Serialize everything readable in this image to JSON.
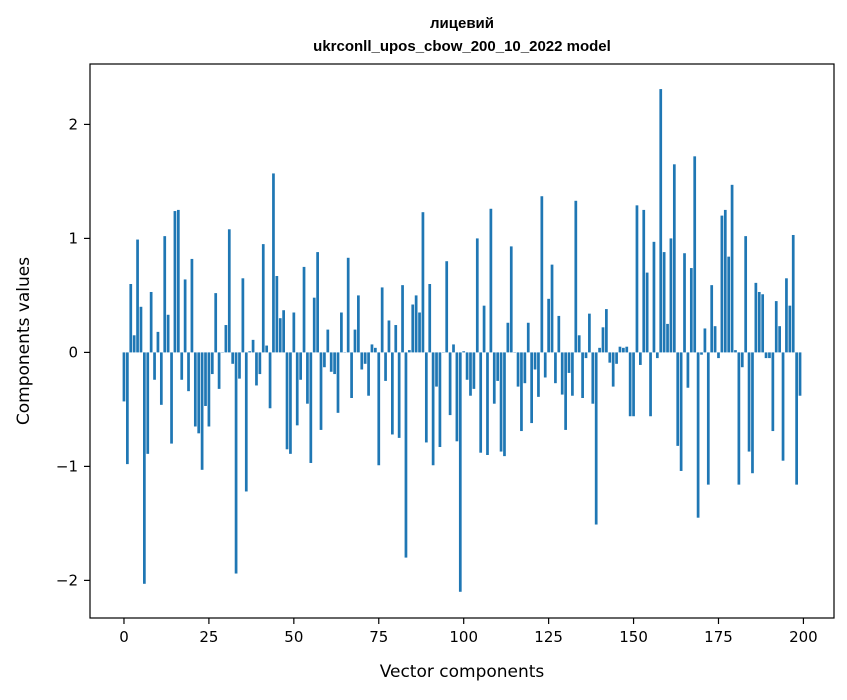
{
  "chart_data": {
    "type": "bar",
    "title_line1": "лицевий",
    "title_line2": "ukrconll_upos_cbow_200_10_2022 model",
    "xlabel": "Vector components",
    "ylabel": "Components values",
    "xlim": [
      -10,
      209
    ],
    "ylim": [
      -2.33,
      2.53
    ],
    "x_ticks": [
      0,
      25,
      50,
      75,
      100,
      125,
      150,
      175,
      200
    ],
    "x_tick_labels": [
      "0",
      "25",
      "50",
      "75",
      "100",
      "125",
      "150",
      "175",
      "200"
    ],
    "y_ticks": [
      -2,
      -1,
      0,
      1,
      2
    ],
    "y_tick_labels": [
      "−2",
      "−1",
      "0",
      "1",
      "2"
    ],
    "bar_color": "#1f77b4",
    "grid": false,
    "legend": "none",
    "values": [
      -0.43,
      -0.98,
      0.6,
      0.15,
      0.99,
      0.4,
      -2.03,
      -0.89,
      0.53,
      -0.24,
      0.18,
      -0.46,
      1.02,
      0.33,
      -0.8,
      1.24,
      1.25,
      -0.24,
      0.64,
      -0.34,
      0.82,
      -0.65,
      -0.71,
      -1.03,
      -0.47,
      -0.65,
      -0.19,
      0.52,
      -0.32,
      0.0,
      0.24,
      1.08,
      -0.1,
      -1.94,
      -0.23,
      0.65,
      -1.22,
      0.01,
      0.11,
      -0.29,
      -0.19,
      0.95,
      0.06,
      -0.49,
      1.57,
      0.67,
      0.3,
      0.37,
      -0.85,
      -0.89,
      0.35,
      -0.64,
      -0.24,
      0.75,
      -0.45,
      -0.97,
      0.48,
      0.88,
      -0.68,
      -0.13,
      0.2,
      -0.17,
      -0.19,
      -0.53,
      0.35,
      0.0,
      0.83,
      -0.4,
      0.2,
      0.5,
      -0.15,
      -0.1,
      -0.38,
      0.07,
      0.04,
      -0.99,
      0.57,
      -0.25,
      0.28,
      -0.72,
      0.24,
      -0.75,
      0.59,
      -1.8,
      0.02,
      0.42,
      0.5,
      0.35,
      1.23,
      -0.79,
      0.6,
      -0.99,
      -0.3,
      -0.83,
      0.0,
      0.8,
      -0.55,
      0.07,
      -0.78,
      -2.1,
      0.01,
      -0.24,
      -0.38,
      -0.32,
      1.0,
      -0.88,
      0.41,
      -0.9,
      1.26,
      -0.45,
      -0.25,
      -0.87,
      -0.91,
      0.26,
      0.93,
      0.0,
      -0.3,
      -0.69,
      -0.27,
      0.26,
      -0.62,
      -0.15,
      -0.39,
      1.37,
      -0.22,
      0.47,
      0.77,
      -0.27,
      0.32,
      -0.37,
      -0.68,
      -0.18,
      -0.38,
      1.33,
      0.15,
      -0.4,
      -0.05,
      0.34,
      -0.45,
      -1.51,
      0.04,
      0.22,
      0.38,
      -0.09,
      -0.3,
      -0.1,
      0.05,
      0.04,
      0.05,
      -0.56,
      -0.56,
      1.29,
      -0.11,
      1.25,
      0.7,
      -0.56,
      0.97,
      -0.05,
      2.31,
      0.88,
      0.25,
      1.0,
      1.65,
      -0.82,
      -1.04,
      0.87,
      -0.31,
      0.74,
      1.72,
      -1.45,
      -0.02,
      0.21,
      -1.16,
      0.59,
      0.23,
      -0.05,
      1.2,
      1.25,
      0.84,
      1.47,
      0.02,
      -1.16,
      -0.13,
      1.02,
      -0.87,
      -1.06,
      0.61,
      0.53,
      0.51,
      -0.05,
      -0.05,
      -0.69,
      0.45,
      0.23,
      -0.95,
      0.65,
      0.41,
      1.03,
      -1.16,
      -0.38
    ]
  }
}
